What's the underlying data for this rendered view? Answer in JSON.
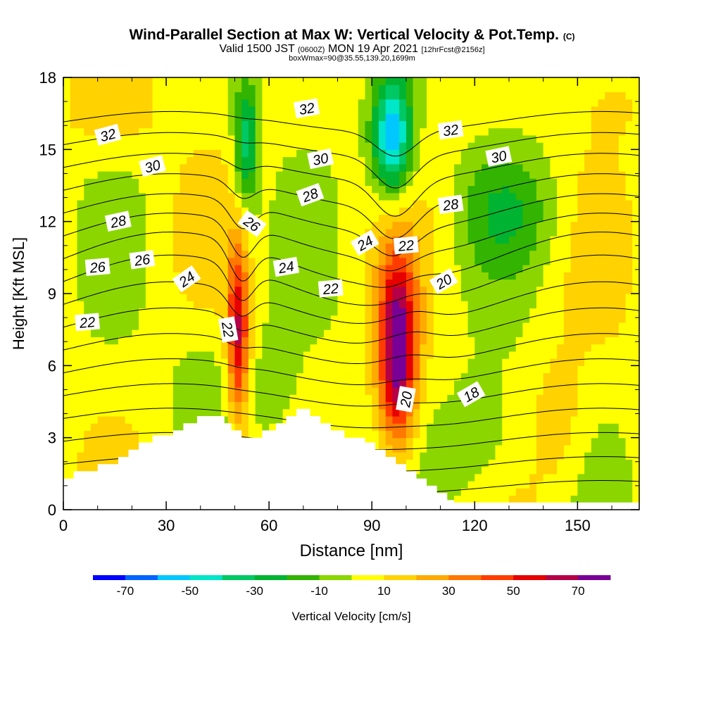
{
  "title": {
    "main": "Wind-Parallel Section at Max W: Vertical Velocity & Pot.Temp.",
    "copyright": "(C)",
    "valid_prefix": "Valid 1500 JST",
    "valid_utc": "(0600Z)",
    "valid_date": "MON 19 Apr 2021",
    "forecast": "[12hrFcst@2156z]",
    "box_info": "boxWmax=90@35.55,139.20,1699m"
  },
  "chart_data": {
    "type": "heatmap",
    "xlabel": "Distance [nm]",
    "ylabel": "Height [Kft MSL]",
    "xlim": [
      0,
      168
    ],
    "ylim": [
      0,
      18
    ],
    "x_ticks": [
      0,
      30,
      60,
      90,
      120,
      150
    ],
    "y_ticks": [
      0,
      3,
      6,
      9,
      12,
      15,
      18
    ],
    "colorbar": {
      "label": "Vertical Velocity [cm/s]",
      "tick_labels": [
        "-70",
        "-50",
        "-30",
        "-10",
        "10",
        "30",
        "50",
        "70"
      ],
      "tick_values": [
        -70,
        -50,
        -30,
        -10,
        10,
        30,
        50,
        70
      ],
      "bounds": [
        -80,
        80
      ],
      "step": 10,
      "colors": [
        "#0000ff",
        "#0064ff",
        "#00c8ff",
        "#00e6c8",
        "#00c864",
        "#00b432",
        "#32b400",
        "#8cd600",
        "#ffff00",
        "#ffd200",
        "#ffaa00",
        "#ff7800",
        "#ff3c00",
        "#e60000",
        "#b40046",
        "#780096"
      ]
    },
    "vertical_velocity_features": [
      {
        "x_range": [
          48,
          54
        ],
        "z_range": [
          3.5,
          11.0
        ],
        "peak_w": 55,
        "sign": "updraft"
      },
      {
        "x_range": [
          92,
          103
        ],
        "z_range": [
          2.5,
          10.5
        ],
        "peak_w": 75,
        "sign": "updraft"
      },
      {
        "x_range": [
          50,
          57
        ],
        "z_range": [
          12.5,
          18.0
        ],
        "peak_w": -40,
        "sign": "downdraft"
      },
      {
        "x_range": [
          90,
          102
        ],
        "z_range": [
          13.0,
          18.0
        ],
        "peak_w": -65,
        "sign": "downdraft"
      }
    ],
    "theta_contours": {
      "interval": 1,
      "labeled_values": [
        "18",
        "20",
        "22",
        "24",
        "26",
        "28",
        "30",
        "32"
      ],
      "labels": [
        {
          "text": "32",
          "x": 13,
          "z": 15.6,
          "angle": -15
        },
        {
          "text": "32",
          "x": 71,
          "z": 16.7,
          "angle": -10
        },
        {
          "text": "32",
          "x": 113,
          "z": 15.8,
          "angle": -8
        },
        {
          "text": "30",
          "x": 26,
          "z": 14.3,
          "angle": -15
        },
        {
          "text": "30",
          "x": 75,
          "z": 14.6,
          "angle": -12
        },
        {
          "text": "30",
          "x": 127,
          "z": 14.7,
          "angle": -12
        },
        {
          "text": "28",
          "x": 16,
          "z": 12.0,
          "angle": -12
        },
        {
          "text": "28",
          "x": 72,
          "z": 13.1,
          "angle": -20
        },
        {
          "text": "28",
          "x": 113,
          "z": 12.7,
          "angle": -8
        },
        {
          "text": "26",
          "x": 10,
          "z": 10.1,
          "angle": -5
        },
        {
          "text": "26",
          "x": 23,
          "z": 10.4,
          "angle": -8
        },
        {
          "text": "26",
          "x": 55,
          "z": 11.9,
          "angle": 35
        },
        {
          "text": "24",
          "x": 36,
          "z": 9.6,
          "angle": -35
        },
        {
          "text": "24",
          "x": 65,
          "z": 10.1,
          "angle": -10
        },
        {
          "text": "24",
          "x": 88,
          "z": 11.1,
          "angle": -30
        },
        {
          "text": "22",
          "x": 7,
          "z": 7.8,
          "angle": -5
        },
        {
          "text": "22",
          "x": 48,
          "z": 7.5,
          "angle": 80
        },
        {
          "text": "22",
          "x": 78,
          "z": 9.2,
          "angle": -5
        },
        {
          "text": "22",
          "x": 100,
          "z": 11.0,
          "angle": -5
        },
        {
          "text": "20",
          "x": 111,
          "z": 9.5,
          "angle": -30
        },
        {
          "text": "20",
          "x": 100,
          "z": 4.6,
          "angle": -80
        },
        {
          "text": "18",
          "x": 119,
          "z": 4.8,
          "angle": -30
        }
      ]
    },
    "terrain": [
      [
        0,
        1.3
      ],
      [
        3,
        1.3
      ],
      [
        3,
        1.6
      ],
      [
        10,
        1.6
      ],
      [
        10,
        1.9
      ],
      [
        16,
        1.9
      ],
      [
        16,
        2.2
      ],
      [
        19,
        2.2
      ],
      [
        19,
        2.5
      ],
      [
        22,
        2.5
      ],
      [
        22,
        2.8
      ],
      [
        26,
        2.8
      ],
      [
        26,
        3.1
      ],
      [
        32,
        3.1
      ],
      [
        32,
        3.3
      ],
      [
        35,
        3.3
      ],
      [
        35,
        3.6
      ],
      [
        39,
        3.6
      ],
      [
        39,
        3.9
      ],
      [
        47,
        3.9
      ],
      [
        47,
        3.6
      ],
      [
        49,
        3.6
      ],
      [
        49,
        3.3
      ],
      [
        52,
        3.3
      ],
      [
        52,
        3.0
      ],
      [
        58,
        3.0
      ],
      [
        58,
        3.3
      ],
      [
        62,
        3.3
      ],
      [
        62,
        3.6
      ],
      [
        65,
        3.6
      ],
      [
        65,
        3.9
      ],
      [
        68,
        3.9
      ],
      [
        68,
        4.2
      ],
      [
        72,
        4.2
      ],
      [
        72,
        3.9
      ],
      [
        75,
        3.9
      ],
      [
        75,
        3.6
      ],
      [
        78,
        3.6
      ],
      [
        78,
        3.3
      ],
      [
        82,
        3.3
      ],
      [
        82,
        3.0
      ],
      [
        88,
        3.0
      ],
      [
        88,
        2.8
      ],
      [
        91,
        2.8
      ],
      [
        91,
        2.5
      ],
      [
        94,
        2.5
      ],
      [
        94,
        2.2
      ],
      [
        97,
        2.2
      ],
      [
        97,
        1.9
      ],
      [
        100,
        1.9
      ],
      [
        100,
        1.6
      ],
      [
        103,
        1.6
      ],
      [
        103,
        1.3
      ],
      [
        106,
        1.3
      ],
      [
        106,
        1.0
      ],
      [
        109,
        1.0
      ],
      [
        109,
        0.7
      ],
      [
        112,
        0.7
      ],
      [
        112,
        0.4
      ],
      [
        114,
        0.4
      ],
      [
        114,
        0.3
      ],
      [
        168,
        0.3
      ]
    ]
  }
}
